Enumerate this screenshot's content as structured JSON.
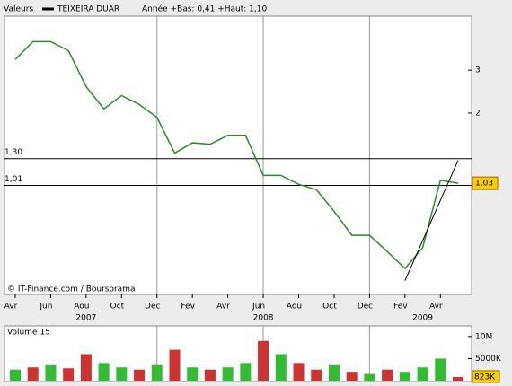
{
  "chart_data": {
    "type": "line",
    "header_label": "Valeurs",
    "title": "TEIXEIRA DUAR",
    "subtitle": "Année +Bas: 0,41 +Haut: 1,10",
    "source": "© IT-Finance.com / Boursorama",
    "log_scale": true,
    "x": [
      "2007-04",
      "2007-05",
      "2007-06",
      "2007-07",
      "2007-08",
      "2007-09",
      "2007-10",
      "2007-11",
      "2007-12",
      "2008-01",
      "2008-02",
      "2008-03",
      "2008-04",
      "2008-05",
      "2008-06",
      "2008-07",
      "2008-08",
      "2008-09",
      "2008-10",
      "2008-11",
      "2008-12",
      "2009-01",
      "2009-02",
      "2009-03",
      "2009-04",
      "2009-05"
    ],
    "series": [
      {
        "name": "TEIXEIRA DUAR",
        "color": "#2a8a2a",
        "values": [
          3.32,
          3.93,
          3.93,
          3.61,
          2.57,
          2.08,
          2.36,
          2.17,
          1.92,
          1.37,
          1.51,
          1.49,
          1.62,
          1.62,
          1.11,
          1.11,
          1.02,
          0.97,
          0.79,
          0.63,
          0.63,
          0.54,
          0.46,
          0.56,
          1.06,
          1.03
        ]
      }
    ],
    "xlim": [
      "2007-04",
      "2009-05"
    ],
    "xticks": [
      {
        "value": "2007-04",
        "label": "Avr"
      },
      {
        "value": "2007-06",
        "label": "Jun"
      },
      {
        "value": "2007-08",
        "label": "Aou"
      },
      {
        "value": "2007-10",
        "label": "Oct"
      },
      {
        "value": "2007-12",
        "label": "Dec"
      },
      {
        "value": "2008-02",
        "label": "Fev"
      },
      {
        "value": "2008-04",
        "label": "Avr"
      },
      {
        "value": "2008-06",
        "label": "Jun"
      },
      {
        "value": "2008-08",
        "label": "Aou"
      },
      {
        "value": "2008-10",
        "label": "Oct"
      },
      {
        "value": "2008-12",
        "label": "Dec"
      },
      {
        "value": "2009-02",
        "label": "Fev"
      },
      {
        "value": "2009-04",
        "label": "Avr"
      }
    ],
    "year_labels": [
      {
        "value": "2007-08",
        "label": "2007"
      },
      {
        "value": "2008-06",
        "label": "2008"
      },
      {
        "value": "2009-03",
        "label": "2009"
      }
    ],
    "vgrid": [
      "2007-12",
      "2008-06",
      "2008-12"
    ],
    "ylim": [
      0.36,
      5
    ],
    "yticks": [
      2,
      3
    ],
    "levels": [
      {
        "value": 1.3,
        "label": "1,30"
      },
      {
        "value": 1.01,
        "label": "1,01"
      }
    ],
    "last_price": {
      "value": 1.03,
      "label": "1,03"
    },
    "trendline": {
      "x": [
        "2009-02",
        "2009-05"
      ],
      "values": [
        0.41,
        1.28
      ]
    },
    "volume": {
      "label": "Volume 15",
      "values": [
        2500000,
        3000000,
        3500000,
        2800000,
        6000000,
        4000000,
        3000000,
        2500000,
        3500000,
        7000000,
        3000000,
        2500000,
        3000000,
        4000000,
        9000000,
        6000000,
        4000000,
        2500000,
        3500000,
        2000000,
        1500000,
        2500000,
        2000000,
        3000000,
        5000000,
        823000
      ],
      "colors": [
        "#33bb33",
        "#cc3333",
        "#33bb33",
        "#cc3333",
        "#cc3333",
        "#33bb33",
        "#33bb33",
        "#cc3333",
        "#33bb33",
        "#cc3333",
        "#33bb33",
        "#cc3333",
        "#33bb33",
        "#33bb33",
        "#cc3333",
        "#33bb33",
        "#cc3333",
        "#cc3333",
        "#33bb33",
        "#cc3333",
        "#33bb33",
        "#cc3333",
        "#33bb33",
        "#33bb33",
        "#33bb33",
        "#cc3333"
      ],
      "ylim": [
        0,
        12000000
      ],
      "yticks": [
        {
          "value": 10000000,
          "label": "10M"
        },
        {
          "value": 5000000,
          "label": "5000K"
        }
      ],
      "last": {
        "value": 823000,
        "label": "823K"
      }
    }
  }
}
